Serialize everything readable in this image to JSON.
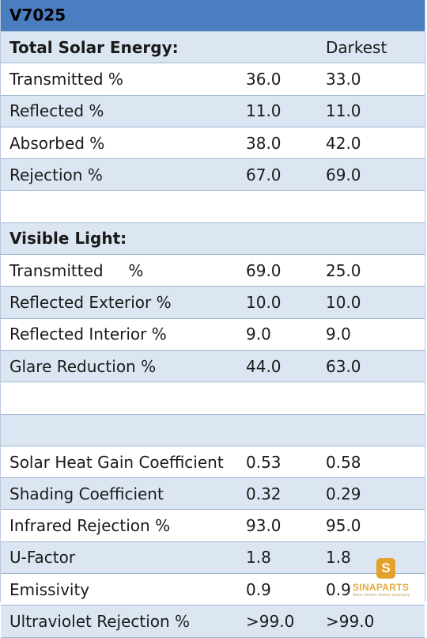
{
  "title": "V7025",
  "rows": [
    {
      "label": "Total Solar Energy:",
      "v1": "",
      "v2": "Darkest",
      "style": "section"
    },
    {
      "label": "Transmitted %",
      "v1": "36.0",
      "v2": "33.0",
      "style": "white"
    },
    {
      "label": "Reflected %",
      "v1": "11.0",
      "v2": "11.0",
      "style": "shade"
    },
    {
      "label": "Absorbed %",
      "v1": "38.0",
      "v2": "42.0",
      "style": "white"
    },
    {
      "label": "Rejection %",
      "v1": "67.0",
      "v2": "69.0",
      "style": "shade"
    },
    {
      "label": "",
      "v1": "",
      "v2": "",
      "style": "white"
    },
    {
      "label": "Visible Light:",
      "v1": "",
      "v2": "",
      "style": "section"
    },
    {
      "label": "Transmitted     %",
      "v1": "69.0",
      "v2": "25.0",
      "style": "white"
    },
    {
      "label": "Reflected Exterior %",
      "v1": "10.0",
      "v2": "10.0",
      "style": "shade"
    },
    {
      "label": "Reflected Interior %",
      "v1": "9.0",
      "v2": "9.0",
      "style": "white"
    },
    {
      "label": "Glare Reduction %",
      "v1": "44.0",
      "v2": "63.0",
      "style": "shade"
    },
    {
      "label": "",
      "v1": "",
      "v2": "",
      "style": "white"
    },
    {
      "label": "",
      "v1": "",
      "v2": "",
      "style": "shade"
    },
    {
      "label": "Solar Heat Gain Coefficient",
      "v1": "0.53",
      "v2": "0.58",
      "style": "white"
    },
    {
      "label": "Shading Coefficient",
      "v1": "0.32",
      "v2": "0.29",
      "style": "shade"
    },
    {
      "label": "Infrared Rejection %",
      "v1": "93.0",
      "v2": "95.0",
      "style": "white"
    },
    {
      "label": "U-Factor",
      "v1": "1.8",
      "v2": "1.8",
      "style": "shade"
    },
    {
      "label": "Emissivity",
      "v1": "0.9",
      "v2": "0.9",
      "style": "white"
    },
    {
      "label": "Ultraviolet Rejection %",
      "v1": ">99.0",
      "v2": ">99.0",
      "style": "shade"
    }
  ],
  "watermark": {
    "badge": "S",
    "name": "SINAPARTS",
    "tagline": "Since chosen, forever accessory",
    "color": "#e3a12a"
  }
}
